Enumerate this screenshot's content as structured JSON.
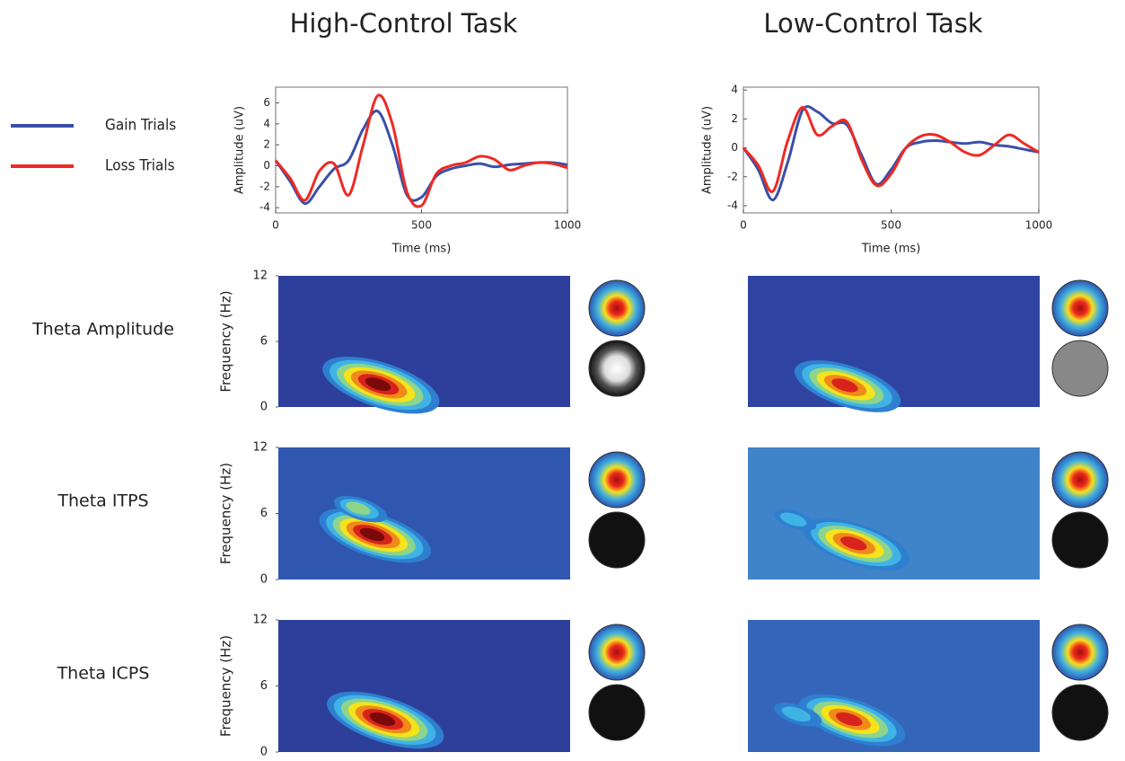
{
  "chart_data": [
    {
      "type": "line",
      "title": "High-Control Task",
      "xlabel": "Time (ms)",
      "ylabel": "Amplitude (uV)",
      "x": [
        0,
        50,
        100,
        150,
        200,
        250,
        300,
        350,
        400,
        450,
        500,
        550,
        600,
        650,
        700,
        750,
        800,
        850,
        900,
        950,
        1000
      ],
      "xlim": [
        0,
        1000
      ],
      "xticks": [
        0,
        500,
        1000
      ],
      "ylim": [
        -4.5,
        7.5
      ],
      "yticks": [
        -4,
        -2,
        0,
        2,
        4,
        6
      ],
      "series": [
        {
          "name": "Gain Trials",
          "color": "#3b4fa8",
          "values": [
            0.5,
            -1.5,
            -3.6,
            -2.0,
            -0.3,
            0.5,
            3.5,
            5.2,
            2.0,
            -2.8,
            -3.0,
            -1.0,
            -0.3,
            0,
            0.2,
            -0.1,
            0.1,
            0.2,
            0.3,
            0.3,
            0.1
          ]
        },
        {
          "name": "Loss Trials",
          "color": "#ee2a24",
          "values": [
            0.5,
            -1.2,
            -3.3,
            -0.5,
            0.2,
            -2.8,
            2.0,
            6.7,
            4.0,
            -2.5,
            -3.8,
            -0.8,
            0,
            0.3,
            0.9,
            0.6,
            -0.4,
            0,
            0.3,
            0.2,
            -0.2
          ]
        }
      ]
    },
    {
      "type": "line",
      "title": "Low-Control Task",
      "xlabel": "Time (ms)",
      "ylabel": "Amplitude (uV)",
      "x": [
        0,
        50,
        100,
        150,
        200,
        250,
        300,
        350,
        400,
        450,
        500,
        550,
        600,
        650,
        700,
        750,
        800,
        850,
        900,
        950,
        1000
      ],
      "xlim": [
        0,
        1000
      ],
      "xticks": [
        0,
        500,
        1000
      ],
      "ylim": [
        -4.5,
        4.2
      ],
      "yticks": [
        -4,
        -2,
        0,
        2,
        4
      ],
      "series": [
        {
          "color": "#3b4fa8",
          "values": [
            0,
            -1.5,
            -3.6,
            -1.0,
            2.6,
            2.5,
            1.7,
            1.6,
            -0.5,
            -2.5,
            -1.5,
            0,
            0.4,
            0.5,
            0.4,
            0.3,
            0.4,
            0.2,
            0.1,
            -0.1,
            -0.3
          ]
        },
        {
          "color": "#ee2a24",
          "values": [
            0,
            -1.2,
            -3.0,
            0.5,
            2.8,
            0.9,
            1.5,
            1.8,
            -0.8,
            -2.6,
            -1.8,
            0,
            0.8,
            0.9,
            0.4,
            -0.3,
            -0.5,
            0.2,
            0.9,
            0.3,
            -0.3
          ]
        }
      ]
    },
    {
      "type": "heatmap",
      "title": "Theta Amplitude",
      "ylabel": "Frequency (Hz)",
      "xlim": [
        0,
        1000
      ],
      "ylim": [
        0,
        12
      ],
      "yticks": [
        12,
        6,
        0
      ],
      "background": "#2d3f9b",
      "blobs": [
        {
          "x": 340,
          "y": 2.1,
          "level": 1.0
        }
      ]
    },
    {
      "type": "heatmap",
      "xlim": [
        0,
        1000
      ],
      "ylim": [
        0,
        12
      ],
      "background": "#2f44a0",
      "blobs": [
        {
          "x": 330,
          "y": 2.0,
          "level": 0.9
        }
      ]
    },
    {
      "type": "heatmap",
      "title": "Theta ITPS",
      "ylabel": "Frequency (Hz)",
      "xlim": [
        0,
        1000
      ],
      "ylim": [
        0,
        12
      ],
      "yticks": [
        12,
        6,
        0
      ],
      "background": "#3057b0",
      "blobs": [
        {
          "x": 320,
          "y": 4.1,
          "level": 0.95
        },
        {
          "x": 270,
          "y": 6.5,
          "level": 0.4
        }
      ]
    },
    {
      "type": "heatmap",
      "xlim": [
        0,
        1000
      ],
      "ylim": [
        0,
        12
      ],
      "background": "#3f83c9",
      "blobs": [
        {
          "x": 360,
          "y": 3.3,
          "level": 0.9
        },
        {
          "x": 150,
          "y": 5.5,
          "level": 0.3
        }
      ]
    },
    {
      "type": "heatmap",
      "title": "Theta ICPS",
      "ylabel": "Frequency (Hz)",
      "xlim": [
        0,
        1000
      ],
      "ylim": [
        0,
        12
      ],
      "yticks": [
        12,
        6,
        0
      ],
      "background": "#2d3f9b",
      "blobs": [
        {
          "x": 355,
          "y": 3.0,
          "level": 1.0
        }
      ]
    },
    {
      "type": "heatmap",
      "xlim": [
        0,
        1000
      ],
      "ylim": [
        0,
        12
      ],
      "background": "#3465b8",
      "blobs": [
        {
          "x": 345,
          "y": 3.0,
          "level": 0.9
        },
        {
          "x": 160,
          "y": 3.5,
          "level": 0.35
        }
      ]
    }
  ]
}
